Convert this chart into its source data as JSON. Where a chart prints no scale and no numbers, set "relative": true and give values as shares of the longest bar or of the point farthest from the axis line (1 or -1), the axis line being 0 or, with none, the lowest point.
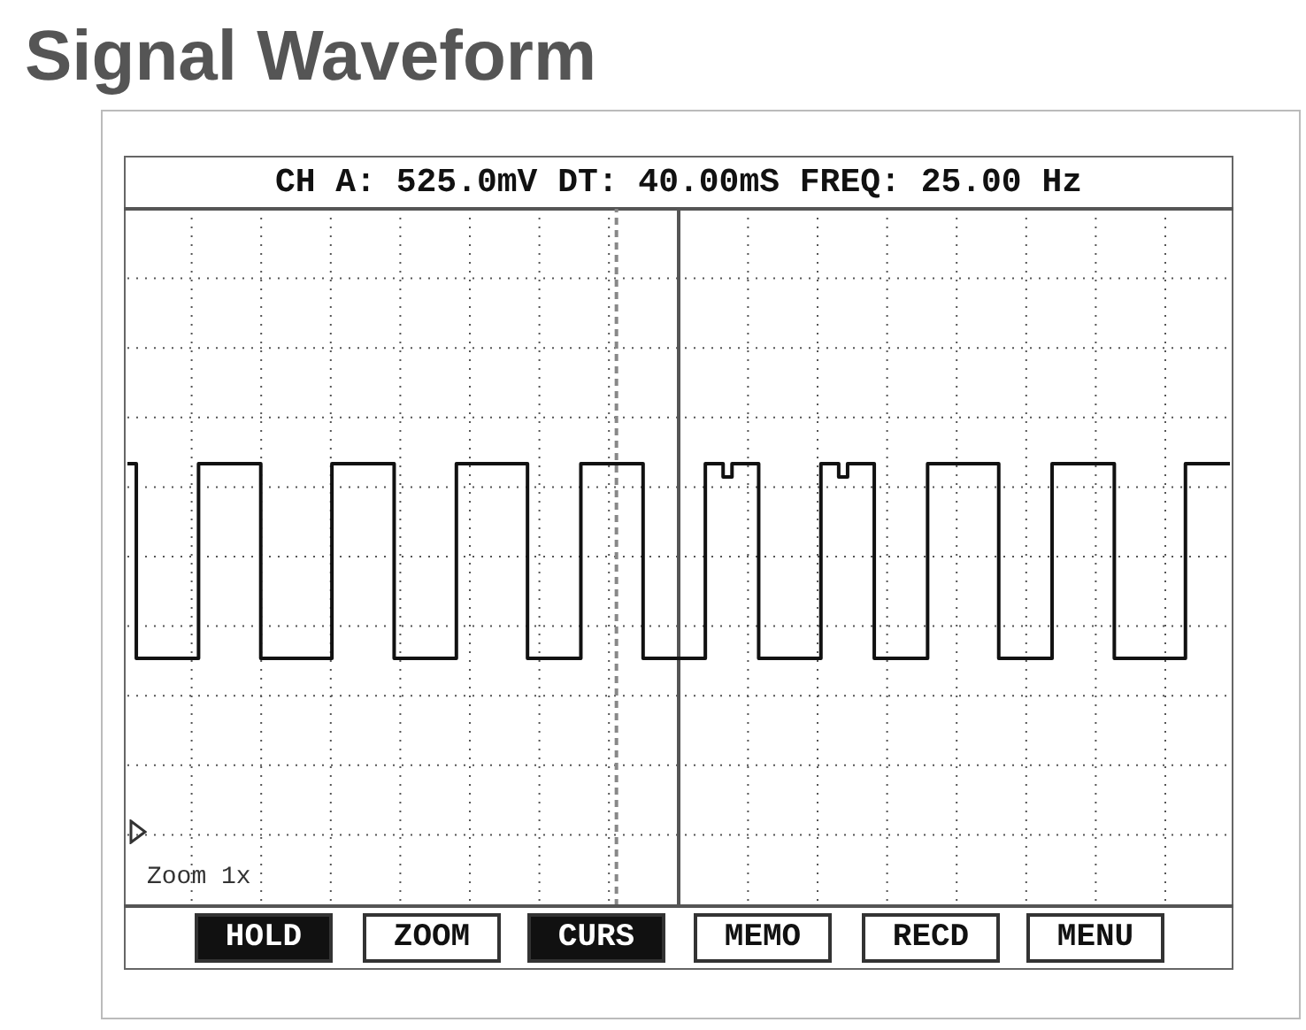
{
  "chart_data": {
    "type": "step",
    "title": "Signal Waveform",
    "subtitle": "CH A: 525.0mV DT: 40.00mS FREQ: 25.00 Hz",
    "relative": true,
    "grid": true,
    "categories": [
      null,
      null,
      null,
      null,
      null,
      null,
      null,
      null,
      null,
      null,
      null,
      null,
      null,
      null,
      null,
      null,
      null,
      null,
      null,
      null,
      null,
      null,
      null,
      null,
      null,
      null,
      null,
      null,
      null,
      null,
      null,
      null,
      null,
      null,
      null,
      null,
      null,
      null,
      null,
      null,
      null,
      null,
      null,
      null,
      null,
      null,
      null,
      null,
      null,
      null,
      null,
      null,
      null,
      null,
      null,
      null,
      null,
      null,
      null,
      null,
      null,
      null,
      null,
      null,
      null,
      null,
      null,
      null,
      null,
      null,
      null,
      null,
      null,
      null,
      null,
      null,
      null,
      null,
      null,
      null,
      null,
      null,
      null,
      null,
      null,
      null,
      null,
      null,
      null,
      null,
      null,
      null,
      null,
      null,
      null,
      null,
      null,
      null,
      null,
      null,
      null,
      null,
      null,
      null,
      null,
      null,
      null,
      null,
      null,
      null,
      null,
      null,
      null,
      null,
      null,
      null,
      null,
      null,
      null,
      null,
      null,
      null,
      null,
      null,
      null
    ],
    "series": [
      {
        "color": "#111111",
        "values": [
          1,
          0.56,
          0.56,
          0.56,
          0.56,
          0.56,
          0.56,
          0.56,
          1,
          1,
          1,
          1,
          1,
          1,
          1,
          0.56,
          0.56,
          0.56,
          0.56,
          0.56,
          0.56,
          0.56,
          0.56,
          1,
          1,
          1,
          1,
          1,
          1,
          1,
          0.56,
          0.56,
          0.56,
          0.56,
          0.56,
          0.56,
          0.56,
          1,
          1,
          1,
          1,
          1,
          1,
          1,
          1,
          0.56,
          0.56,
          0.56,
          0.56,
          0.56,
          0.56,
          1,
          1,
          1,
          1,
          1,
          1,
          1,
          0.56,
          0.56,
          0.56,
          0.56,
          0.56,
          0.56,
          0.56,
          1,
          1,
          0.97,
          1,
          1,
          1,
          0.56,
          0.56,
          0.56,
          0.56,
          0.56,
          0.56,
          0.56,
          1,
          1,
          0.97,
          1,
          1,
          1,
          0.56,
          0.56,
          0.56,
          0.56,
          0.56,
          0.56,
          1,
          1,
          1,
          1,
          1,
          1,
          1,
          1,
          0.56,
          0.56,
          0.56,
          0.56,
          0.56,
          0.56,
          1,
          1,
          1,
          1,
          1,
          1,
          1,
          0.56,
          0.56,
          0.56,
          0.56,
          0.56,
          0.56,
          0.56,
          0.56,
          1,
          1,
          1,
          1,
          1,
          1
        ]
      }
    ],
    "annotations": [
      "Zoom 1x",
      "HOLD",
      "ZOOM",
      "CURS",
      "MEMO",
      "RECD",
      "MENU"
    ]
  }
}
